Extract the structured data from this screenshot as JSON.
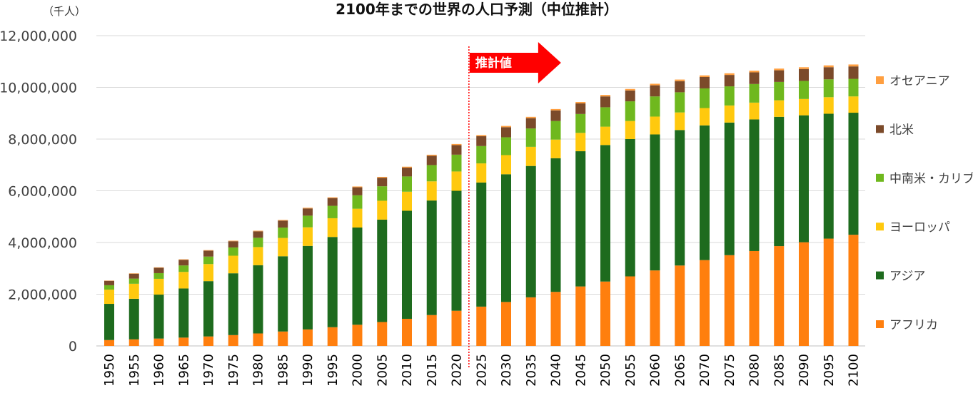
{
  "chart_data": {
    "type": "bar",
    "stacked": true,
    "title": "2100年までの世界の人口予測（中位推計）",
    "unit_label": "（千人）",
    "projection_label": "推計値",
    "projection_start": "2025",
    "ylim": [
      0,
      12000000
    ],
    "yticks": [
      "0",
      "2,000,000",
      "4,000,000",
      "6,000,000",
      "8,000,000",
      "10,000,000",
      "12,000,000"
    ],
    "grid": true,
    "legend_position": "right",
    "categories": [
      "1950",
      "1955",
      "1960",
      "1965",
      "1970",
      "1975",
      "1980",
      "1985",
      "1990",
      "1995",
      "2000",
      "2005",
      "2010",
      "2015",
      "2020",
      "2025",
      "2030",
      "2035",
      "2040",
      "2045",
      "2050",
      "2055",
      "2060",
      "2065",
      "2070",
      "2075",
      "2080",
      "2085",
      "2090",
      "2095",
      "2100"
    ],
    "series": [
      {
        "name": "アフリカ",
        "color": "#FF7F0E",
        "values": [
          227000,
          254000,
          285000,
          322000,
          366000,
          419000,
          483000,
          558000,
          638000,
          724000,
          819000,
          925000,
          1049000,
          1194000,
          1360000,
          1520000,
          1700000,
          1880000,
          2090000,
          2300000,
          2490000,
          2690000,
          2920000,
          3110000,
          3320000,
          3510000,
          3670000,
          3860000,
          4010000,
          4150000,
          4300000
        ]
      },
      {
        "name": "アジア",
        "color": "#1E6B1E",
        "values": [
          1400000,
          1570000,
          1700000,
          1900000,
          2140000,
          2390000,
          2640000,
          2910000,
          3230000,
          3490000,
          3760000,
          3960000,
          4180000,
          4430000,
          4640000,
          4800000,
          4940000,
          5080000,
          5170000,
          5230000,
          5280000,
          5310000,
          5260000,
          5240000,
          5210000,
          5130000,
          5090000,
          5000000,
          4910000,
          4830000,
          4720000
        ]
      },
      {
        "name": "ヨーロッパ",
        "color": "#FFC90E",
        "values": [
          550000,
          580000,
          610000,
          640000,
          660000,
          680000,
          700000,
          710000,
          720000,
          725000,
          727000,
          730000,
          736000,
          741000,
          747000,
          740000,
          740000,
          740000,
          720000,
          710000,
          710000,
          700000,
          690000,
          680000,
          670000,
          660000,
          650000,
          640000,
          630000,
          640000,
          630000
        ]
      },
      {
        "name": "中南米・カリブ",
        "color": "#6FB81E",
        "values": [
          170000,
          200000,
          220000,
          250000,
          290000,
          320000,
          360000,
          400000,
          450000,
          480000,
          520000,
          560000,
          590000,
          630000,
          650000,
          670000,
          690000,
          710000,
          720000,
          730000,
          750000,
          760000,
          780000,
          780000,
          760000,
          740000,
          720000,
          710000,
          700000,
          690000,
          680000
        ]
      },
      {
        "name": "北米",
        "color": "#7B4A2A",
        "values": [
          170000,
          190000,
          210000,
          220000,
          230000,
          240000,
          250000,
          270000,
          280000,
          300000,
          310000,
          330000,
          340000,
          360000,
          370000,
          380000,
          390000,
          400000,
          410000,
          410000,
          420000,
          420000,
          430000,
          430000,
          440000,
          440000,
          450000,
          450000,
          460000,
          470000,
          480000
        ]
      },
      {
        "name": "オセアニア",
        "color": "#FF9F40",
        "values": [
          13000,
          15000,
          16000,
          18000,
          20000,
          21000,
          23000,
          25000,
          27000,
          29000,
          31000,
          34000,
          37000,
          40000,
          43000,
          45000,
          48000,
          50000,
          52000,
          54000,
          57000,
          59000,
          60000,
          62000,
          63000,
          65000,
          66000,
          67000,
          68000,
          70000,
          75000
        ]
      }
    ]
  }
}
